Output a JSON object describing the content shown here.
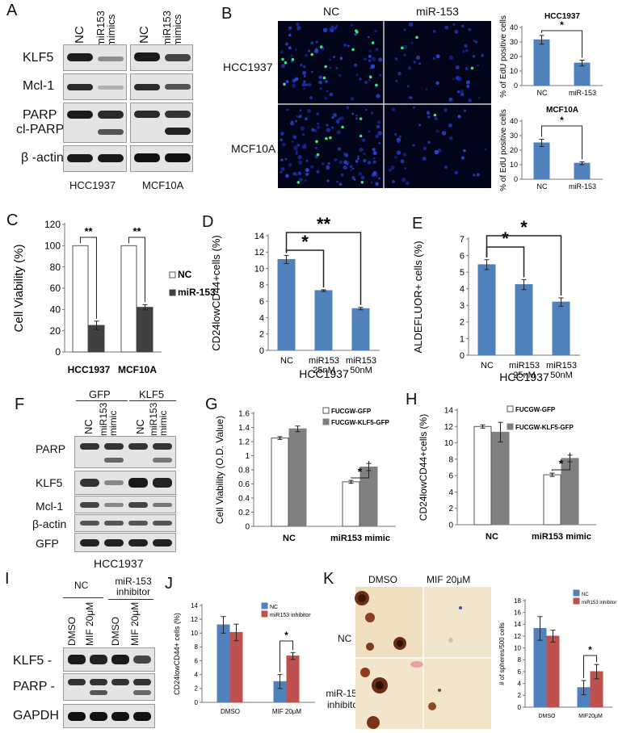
{
  "panel_letters": {
    "a": "A",
    "b": "B",
    "c": "C",
    "d": "D",
    "e": "E",
    "f": "F",
    "g": "G",
    "h": "H",
    "i": "I",
    "j": "J",
    "k": "K"
  },
  "panelA": {
    "cols": [
      "NC",
      "miR153 mimics",
      "NC",
      "miR153 mimics"
    ],
    "rows": [
      "KLF5",
      "Mcl-1",
      "PARP",
      "cl-PARP",
      "β -actin"
    ],
    "cells": [
      "HCC1937",
      "MCF10A"
    ]
  },
  "panelB": {
    "cols": [
      "NC",
      "miR-153"
    ],
    "rows": [
      "HCC1937",
      "MCF10A"
    ]
  },
  "panelF": {
    "groups": [
      "GFP",
      "KLF5"
    ],
    "cols": [
      "NC",
      "miR153 mimic",
      "NC",
      "miR153 mimic"
    ],
    "rows": [
      "PARP",
      "KLF5",
      "Mcl-1",
      "β-actin",
      "GFP"
    ],
    "cell": "HCC1937"
  },
  "panelI": {
    "groups": [
      "NC",
      "miR-153 inhibitor"
    ],
    "cols": [
      "DMSO",
      "MIF 20μM",
      "DMSO",
      "MIF 20μM"
    ],
    "rows": [
      "KLF5 -",
      "PARP -",
      "GAPDH -"
    ]
  },
  "panelK": {
    "cols": [
      "DMSO",
      "MIF 20μM"
    ],
    "rows": [
      "NC",
      "miR-153 inhibitor"
    ]
  },
  "chart_data": [
    {
      "id": "B1",
      "type": "bar",
      "title": "HCC1937",
      "categories": [
        "NC",
        "miR-153"
      ],
      "values": [
        31.5,
        15.5
      ],
      "errors": [
        3,
        2
      ],
      "ylabel": "% of EdU positive cells",
      "ylim": [
        0,
        40
      ],
      "yticks": [
        0,
        10,
        20,
        30,
        40
      ],
      "sig": [
        "*"
      ],
      "color": "#4f81bd"
    },
    {
      "id": "B2",
      "type": "bar",
      "title": "MCF10A",
      "categories": [
        "NC",
        "miR-153"
      ],
      "values": [
        25,
        11
      ],
      "errors": [
        2.5,
        1
      ],
      "ylabel": "% of EdU positive cells",
      "ylim": [
        0,
        40
      ],
      "yticks": [
        0,
        10,
        20,
        30,
        40
      ],
      "sig": [
        "*"
      ],
      "color": "#4f81bd"
    },
    {
      "id": "C",
      "type": "bar",
      "categories": [
        "HCC1937",
        "MCF10A"
      ],
      "series": [
        {
          "name": "NC",
          "values": [
            100,
            100
          ],
          "errors": [
            0,
            0
          ],
          "color": "#ffffff"
        },
        {
          "name": "miR-153",
          "values": [
            25,
            42
          ],
          "errors": [
            4,
            2.5
          ],
          "color": "#404040"
        }
      ],
      "ylabel": "Cell Viability (%)",
      "ylim": [
        0,
        120
      ],
      "yticks": [
        0,
        20,
        40,
        60,
        80,
        100,
        120
      ],
      "sig": [
        "**",
        "**"
      ]
    },
    {
      "id": "D",
      "type": "bar",
      "categories": [
        "NC",
        "miR153 25nM",
        "miR153 50nM"
      ],
      "values": [
        11.1,
        7.3,
        5.1
      ],
      "errors": [
        0.5,
        0.1,
        0.15
      ],
      "ylabel": "CD24lowCD44+cells (%)",
      "ylim": [
        0,
        14
      ],
      "yticks": [
        0,
        2,
        4,
        6,
        8,
        10,
        12,
        14
      ],
      "sig": [
        "*",
        "**"
      ],
      "xlabel": "HCC1937",
      "color": "#4f81bd"
    },
    {
      "id": "E",
      "type": "bar",
      "categories": [
        "NC",
        "miR153 25nM",
        "miR153 50nM"
      ],
      "values": [
        5.45,
        4.25,
        3.2
      ],
      "errors": [
        0.3,
        0.3,
        0.25
      ],
      "ylabel": "ALDEFLUOR+ cells (%)",
      "ylim": [
        0,
        7
      ],
      "yticks": [
        0,
        1,
        2,
        3,
        4,
        5,
        6,
        7
      ],
      "sig": [
        "*",
        "*"
      ],
      "xlabel": "HCC1937",
      "color": "#4f81bd"
    },
    {
      "id": "G",
      "type": "bar",
      "categories": [
        "NC",
        "miR153 mimic"
      ],
      "series": [
        {
          "name": "FUCGW-GFP",
          "values": [
            1.25,
            0.63
          ],
          "errors": [
            0.02,
            0.02
          ],
          "color": "#ffffff"
        },
        {
          "name": "FUCGW-KLF5-GFP",
          "values": [
            1.38,
            0.84
          ],
          "errors": [
            0.04,
            0.05
          ],
          "color": "#808080"
        }
      ],
      "ylabel": "Cell Viability (O.D. Value)",
      "ylim": [
        0,
        1.6
      ],
      "yticks": [
        0,
        0.2,
        0.4,
        0.6,
        0.8,
        1,
        1.2,
        1.4,
        1.6
      ],
      "ytick_labels": [
        "0",
        "0.2",
        "0.4",
        "0.6",
        "0.8",
        "1",
        "1.2",
        "1.4",
        "1.6"
      ],
      "sig": [
        "*"
      ]
    },
    {
      "id": "H",
      "type": "bar",
      "categories": [
        "NC",
        "miR153 mimic"
      ],
      "series": [
        {
          "name": "FUCGW-GFP",
          "values": [
            12.0,
            6.1
          ],
          "errors": [
            0.2,
            0.2
          ],
          "color": "#ffffff"
        },
        {
          "name": "FUCGW-KLF5-GFP",
          "values": [
            11.3,
            8.1
          ],
          "errors": [
            1.2,
            0.4
          ],
          "color": "#808080"
        }
      ],
      "ylabel": "CD24lowCD44+cells (%)",
      "ylim": [
        0,
        14
      ],
      "yticks": [
        0,
        2,
        4,
        6,
        8,
        10,
        12,
        14
      ],
      "sig": [
        "*"
      ]
    },
    {
      "id": "J",
      "type": "bar",
      "categories": [
        "DMSO",
        "MIF 20μM"
      ],
      "series": [
        {
          "name": "NC",
          "values": [
            11.2,
            3.0
          ],
          "errors": [
            1.2,
            1.0
          ],
          "color": "#4f81bd"
        },
        {
          "name": "miR153 inhibitor",
          "values": [
            10.1,
            6.7
          ],
          "errors": [
            1.2,
            0.5
          ],
          "color": "#c0504d"
        }
      ],
      "ylabel": "CD24lowCD44+ cells (%)",
      "ylim": [
        0,
        14
      ],
      "yticks": [
        0,
        2,
        4,
        6,
        8,
        10,
        12,
        14
      ],
      "sig": [
        "*"
      ]
    },
    {
      "id": "K",
      "type": "bar",
      "categories": [
        "DMSO",
        "MIF20μM"
      ],
      "series": [
        {
          "name": "NC",
          "values": [
            13.3,
            3.3
          ],
          "errors": [
            2,
            1.2
          ],
          "color": "#4f81bd"
        },
        {
          "name": "miR153 inhibitor",
          "values": [
            12.0,
            6.0
          ],
          "errors": [
            1,
            1.2
          ],
          "color": "#c0504d"
        }
      ],
      "ylabel": "# of spheres/500 cells",
      "ylim": [
        0,
        18
      ],
      "yticks": [
        0,
        2,
        4,
        6,
        8,
        10,
        12,
        14,
        16,
        18
      ],
      "sig": [
        "*"
      ]
    }
  ]
}
